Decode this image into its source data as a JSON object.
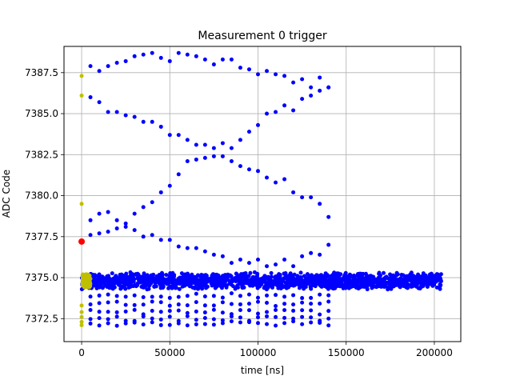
{
  "chart_data": {
    "type": "scatter",
    "title": "Measurement 0 trigger",
    "xlabel": "time [ns]",
    "ylabel": "ADC Code",
    "xlim": [
      -10000,
      215000
    ],
    "ylim": [
      7371.1,
      7389.1
    ],
    "xticks": [
      0,
      50000,
      100000,
      150000,
      200000
    ],
    "xtick_labels": [
      "0",
      "50000",
      "100000",
      "150000",
      "200000"
    ],
    "yticks": [
      7372.5,
      7375.0,
      7377.5,
      7380.0,
      7382.5,
      7385.0,
      7387.5
    ],
    "ytick_labels": [
      "7372.5",
      "7375.0",
      "7377.5",
      "7380.0",
      "7382.5",
      "7385.0",
      "7387.5"
    ],
    "grid": true,
    "series": [
      {
        "color": "#0000ff",
        "marker_radius": 2.5,
        "x_start": 5000,
        "x_end": 140000,
        "x_step": 5000,
        "curves": [
          [
            7387.9,
            7387.6,
            7387.9,
            7388.1,
            7388.2,
            7388.5,
            7388.6,
            7388.7,
            7388.4,
            7388.2,
            7388.7,
            7388.6,
            7388.5,
            7388.3,
            7388.0,
            7388.3,
            7388.3,
            7387.8,
            7387.7,
            7387.4,
            7387.6,
            7387.4,
            7387.3,
            7386.9,
            7387.1,
            7386.6,
            7387.2,
            7386.6
          ],
          [
            7386.0,
            7385.7,
            7385.1,
            7385.1,
            7384.9,
            7384.8,
            7384.5,
            7384.5,
            7384.2,
            7383.7,
            7383.7,
            7383.4,
            7383.1,
            7383.1,
            7382.9,
            7383.2,
            7382.9,
            7383.4,
            7383.9,
            7384.3,
            7385.0,
            7385.1,
            7385.5,
            7385.2,
            7385.9,
            7386.1,
            7386.4,
            7386.6
          ],
          [
            7378.5,
            7378.9,
            7379.0,
            7378.5,
            7378.3,
            7378.9,
            7379.3,
            7379.6,
            7380.2,
            7380.6,
            7381.3,
            7382.1,
            7382.2,
            7382.3,
            7382.4,
            7382.4,
            7382.1,
            7381.8,
            7381.6,
            7381.5,
            7381.1,
            7380.8,
            7381.0,
            7380.2,
            7379.9,
            7379.9,
            7379.5,
            7378.7
          ],
          [
            7377.6,
            7377.7,
            7377.8,
            7378.0,
            7378.1,
            7377.9,
            7377.5,
            7377.6,
            7377.3,
            7377.3,
            7376.9,
            7376.8,
            7376.8,
            7376.6,
            7376.4,
            7376.3,
            7375.9,
            7376.1,
            7375.9,
            7376.1,
            7375.7,
            7375.8,
            7376.1,
            7375.7,
            7376.3,
            7376.5,
            7376.4,
            7377.0
          ]
        ],
        "band": {
          "x_min": 0,
          "x_max": 204000,
          "center": 7374.8,
          "spread": 0.55,
          "count": 1600
        },
        "low_rows": [
          7373.9,
          7373.4,
          7372.9,
          7372.5,
          7372.2
        ]
      },
      {
        "color": "#bfbf00",
        "marker_radius": 2.5,
        "x": [
          0,
          0,
          0,
          0,
          0,
          0,
          0,
          0
        ],
        "y": [
          7387.3,
          7386.1,
          7379.5,
          7373.3,
          7372.9,
          7372.6,
          7372.3,
          7372.1
        ],
        "cluster": {
          "x_min": 500,
          "x_max": 5000,
          "y_min": 7374.4,
          "y_max": 7375.2,
          "count": 140
        }
      },
      {
        "color": "#ff0000",
        "marker_radius": 4,
        "x": [
          0
        ],
        "y": [
          7377.2
        ]
      }
    ]
  }
}
